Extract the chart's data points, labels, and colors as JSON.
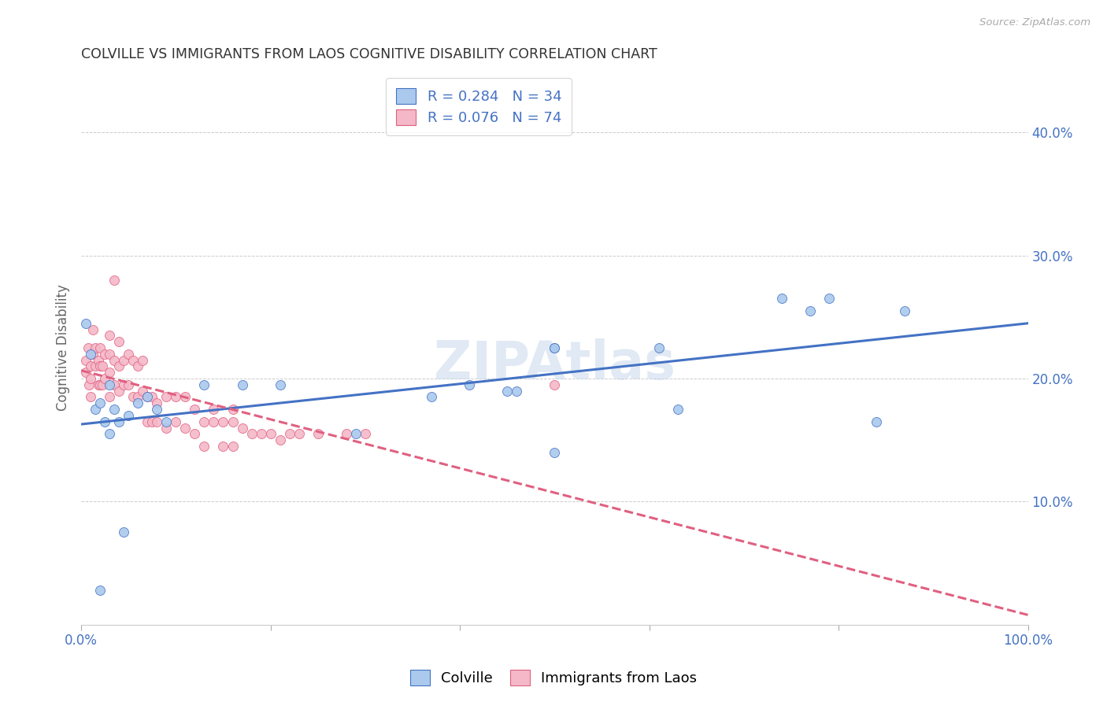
{
  "title": "COLVILLE VS IMMIGRANTS FROM LAOS COGNITIVE DISABILITY CORRELATION CHART",
  "source": "Source: ZipAtlas.com",
  "ylabel": "Cognitive Disability",
  "xlim": [
    0,
    1.0
  ],
  "ylim": [
    0,
    0.45
  ],
  "xticks": [
    0.0,
    0.2,
    0.4,
    0.6,
    0.8,
    1.0
  ],
  "xticklabels": [
    "0.0%",
    "",
    "",
    "",
    "",
    "100.0%"
  ],
  "yticks": [
    0.0,
    0.1,
    0.2,
    0.3,
    0.4
  ],
  "yticklabels": [
    "",
    "10.0%",
    "20.0%",
    "30.0%",
    "40.0%"
  ],
  "background_color": "#ffffff",
  "grid_color": "#cccccc",
  "colville_color": "#aac9ed",
  "laos_color": "#f4b8c8",
  "colville_line_color": "#4472c4",
  "laos_line_color": "#e06080",
  "legend_colville_label": "Colville",
  "legend_laos_label": "Immigrants from Laos",
  "R_colville": 0.284,
  "N_colville": 34,
  "R_laos": 0.076,
  "N_laos": 74,
  "watermark": "ZIPAtlas",
  "colville_x": [
    0.005,
    0.01,
    0.015,
    0.02,
    0.025,
    0.03,
    0.035,
    0.04,
    0.05,
    0.06,
    0.07,
    0.09,
    0.13,
    0.17,
    0.21,
    0.37,
    0.41,
    0.46,
    0.5,
    0.5,
    0.61,
    0.63,
    0.77,
    0.79,
    0.87,
    0.02,
    0.08,
    0.29,
    0.5,
    0.84,
    0.74,
    0.03,
    0.045,
    0.45
  ],
  "colville_y": [
    0.245,
    0.22,
    0.175,
    0.18,
    0.165,
    0.195,
    0.175,
    0.165,
    0.17,
    0.18,
    0.185,
    0.165,
    0.195,
    0.195,
    0.195,
    0.185,
    0.195,
    0.19,
    0.225,
    0.225,
    0.225,
    0.175,
    0.255,
    0.265,
    0.255,
    0.028,
    0.175,
    0.155,
    0.14,
    0.165,
    0.265,
    0.155,
    0.075,
    0.19
  ],
  "laos_x": [
    0.005,
    0.005,
    0.007,
    0.008,
    0.01,
    0.01,
    0.01,
    0.012,
    0.012,
    0.015,
    0.015,
    0.018,
    0.018,
    0.02,
    0.02,
    0.02,
    0.022,
    0.022,
    0.025,
    0.025,
    0.03,
    0.03,
    0.03,
    0.03,
    0.035,
    0.035,
    0.04,
    0.04,
    0.04,
    0.045,
    0.045,
    0.05,
    0.05,
    0.055,
    0.055,
    0.06,
    0.06,
    0.065,
    0.065,
    0.07,
    0.07,
    0.075,
    0.075,
    0.08,
    0.08,
    0.09,
    0.09,
    0.1,
    0.1,
    0.11,
    0.11,
    0.12,
    0.12,
    0.13,
    0.13,
    0.14,
    0.15,
    0.15,
    0.16,
    0.16,
    0.17,
    0.18,
    0.19,
    0.2,
    0.21,
    0.22,
    0.23,
    0.25,
    0.28,
    0.3,
    0.035,
    0.14,
    0.5,
    0.16
  ],
  "laos_y": [
    0.215,
    0.205,
    0.225,
    0.195,
    0.21,
    0.2,
    0.185,
    0.24,
    0.22,
    0.225,
    0.21,
    0.215,
    0.195,
    0.225,
    0.21,
    0.195,
    0.21,
    0.195,
    0.22,
    0.2,
    0.235,
    0.22,
    0.205,
    0.185,
    0.215,
    0.195,
    0.23,
    0.21,
    0.19,
    0.215,
    0.195,
    0.22,
    0.195,
    0.215,
    0.185,
    0.21,
    0.185,
    0.215,
    0.19,
    0.185,
    0.165,
    0.185,
    0.165,
    0.18,
    0.165,
    0.185,
    0.16,
    0.185,
    0.165,
    0.185,
    0.16,
    0.175,
    0.155,
    0.165,
    0.145,
    0.165,
    0.165,
    0.145,
    0.165,
    0.145,
    0.16,
    0.155,
    0.155,
    0.155,
    0.15,
    0.155,
    0.155,
    0.155,
    0.155,
    0.155,
    0.28,
    0.175,
    0.195,
    0.175
  ]
}
